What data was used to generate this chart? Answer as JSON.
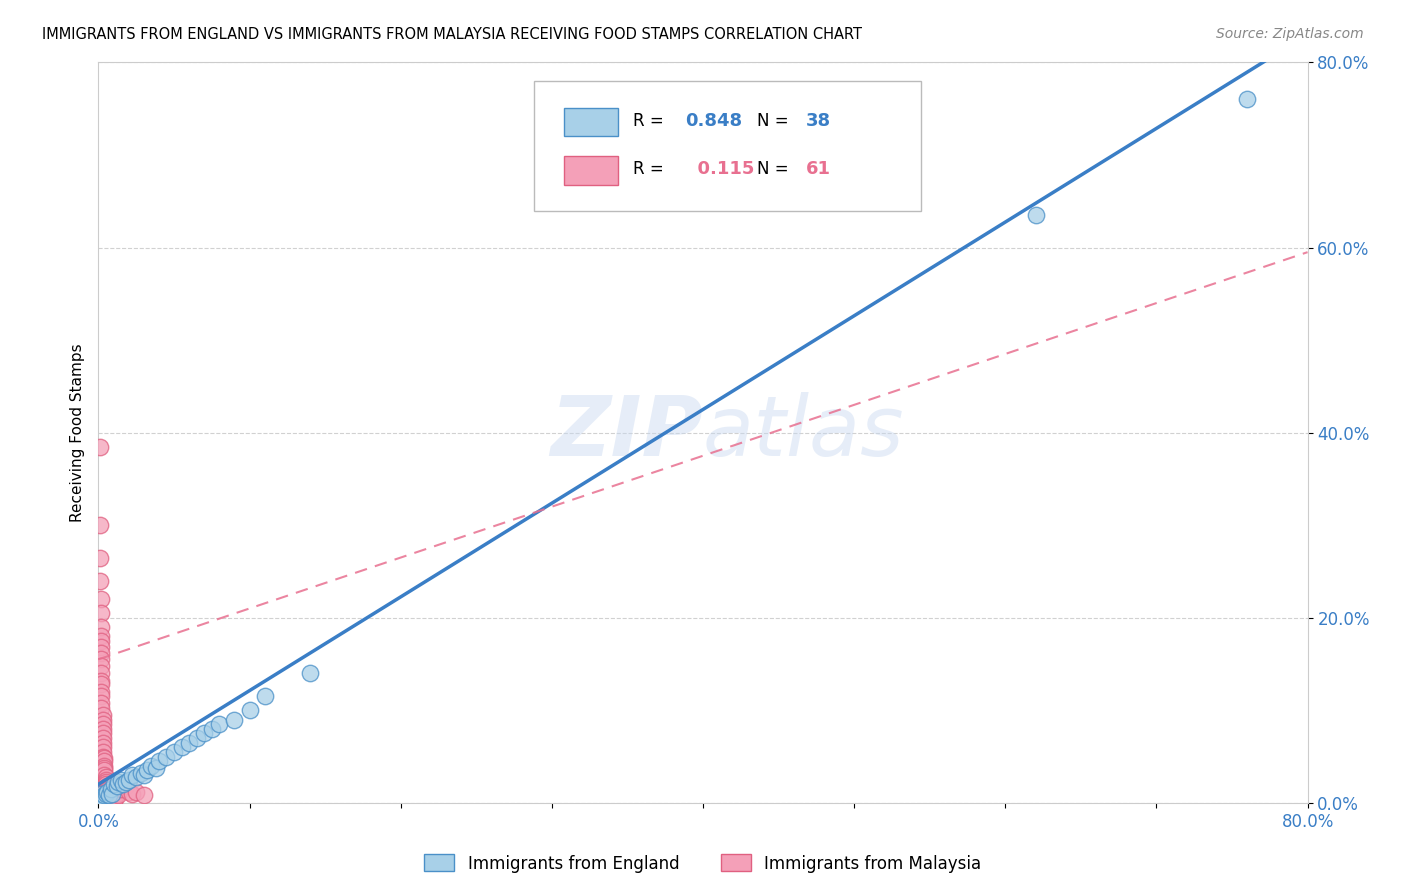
{
  "title": "IMMIGRANTS FROM ENGLAND VS IMMIGRANTS FROM MALAYSIA RECEIVING FOOD STAMPS CORRELATION CHART",
  "source": "Source: ZipAtlas.com",
  "ylabel": "Receiving Food Stamps",
  "xlim": [
    0.0,
    0.8
  ],
  "ylim": [
    0.0,
    0.8
  ],
  "england_R": 0.848,
  "england_N": 38,
  "malaysia_R": 0.115,
  "malaysia_N": 61,
  "england_color": "#A8D0E8",
  "malaysia_color": "#F4A0B8",
  "england_edge_color": "#4A90C8",
  "malaysia_edge_color": "#E06080",
  "england_line_color": "#3A7EC6",
  "malaysia_line_color": "#E87090",
  "england_scatter": [
    [
      0.002,
      0.005
    ],
    [
      0.002,
      0.01
    ],
    [
      0.003,
      0.005
    ],
    [
      0.004,
      0.008
    ],
    [
      0.005,
      0.01
    ],
    [
      0.006,
      0.012
    ],
    [
      0.007,
      0.008
    ],
    [
      0.008,
      0.015
    ],
    [
      0.009,
      0.01
    ],
    [
      0.01,
      0.02
    ],
    [
      0.012,
      0.018
    ],
    [
      0.013,
      0.022
    ],
    [
      0.015,
      0.025
    ],
    [
      0.016,
      0.02
    ],
    [
      0.018,
      0.022
    ],
    [
      0.02,
      0.025
    ],
    [
      0.022,
      0.03
    ],
    [
      0.025,
      0.028
    ],
    [
      0.028,
      0.032
    ],
    [
      0.03,
      0.03
    ],
    [
      0.032,
      0.035
    ],
    [
      0.035,
      0.04
    ],
    [
      0.038,
      0.038
    ],
    [
      0.04,
      0.045
    ],
    [
      0.045,
      0.05
    ],
    [
      0.05,
      0.055
    ],
    [
      0.055,
      0.06
    ],
    [
      0.06,
      0.065
    ],
    [
      0.065,
      0.07
    ],
    [
      0.07,
      0.075
    ],
    [
      0.075,
      0.08
    ],
    [
      0.08,
      0.085
    ],
    [
      0.09,
      0.09
    ],
    [
      0.1,
      0.1
    ],
    [
      0.11,
      0.115
    ],
    [
      0.14,
      0.14
    ],
    [
      0.62,
      0.635
    ],
    [
      0.76,
      0.76
    ]
  ],
  "malaysia_scatter": [
    [
      0.001,
      0.385
    ],
    [
      0.001,
      0.3
    ],
    [
      0.001,
      0.265
    ],
    [
      0.001,
      0.24
    ],
    [
      0.002,
      0.22
    ],
    [
      0.002,
      0.205
    ],
    [
      0.002,
      0.19
    ],
    [
      0.002,
      0.18
    ],
    [
      0.002,
      0.175
    ],
    [
      0.002,
      0.168
    ],
    [
      0.002,
      0.162
    ],
    [
      0.002,
      0.155
    ],
    [
      0.002,
      0.148
    ],
    [
      0.002,
      0.14
    ],
    [
      0.002,
      0.132
    ],
    [
      0.002,
      0.128
    ],
    [
      0.002,
      0.12
    ],
    [
      0.002,
      0.115
    ],
    [
      0.002,
      0.108
    ],
    [
      0.002,
      0.102
    ],
    [
      0.003,
      0.095
    ],
    [
      0.003,
      0.09
    ],
    [
      0.003,
      0.085
    ],
    [
      0.003,
      0.08
    ],
    [
      0.003,
      0.075
    ],
    [
      0.003,
      0.07
    ],
    [
      0.003,
      0.065
    ],
    [
      0.003,
      0.06
    ],
    [
      0.003,
      0.055
    ],
    [
      0.003,
      0.05
    ],
    [
      0.004,
      0.048
    ],
    [
      0.004,
      0.045
    ],
    [
      0.004,
      0.04
    ],
    [
      0.004,
      0.038
    ],
    [
      0.004,
      0.035
    ],
    [
      0.004,
      0.03
    ],
    [
      0.005,
      0.028
    ],
    [
      0.005,
      0.025
    ],
    [
      0.005,
      0.022
    ],
    [
      0.005,
      0.02
    ],
    [
      0.006,
      0.018
    ],
    [
      0.006,
      0.016
    ],
    [
      0.006,
      0.014
    ],
    [
      0.006,
      0.012
    ],
    [
      0.007,
      0.01
    ],
    [
      0.007,
      0.008
    ],
    [
      0.007,
      0.006
    ],
    [
      0.008,
      0.005
    ],
    [
      0.008,
      0.004
    ],
    [
      0.009,
      0.003
    ],
    [
      0.01,
      0.002
    ],
    [
      0.01,
      0.002
    ],
    [
      0.011,
      0.012
    ],
    [
      0.012,
      0.01
    ],
    [
      0.013,
      0.008
    ],
    [
      0.015,
      0.015
    ],
    [
      0.018,
      0.018
    ],
    [
      0.02,
      0.012
    ],
    [
      0.022,
      0.01
    ],
    [
      0.025,
      0.012
    ],
    [
      0.03,
      0.008
    ]
  ],
  "england_line": [
    [
      0.0,
      0.02
    ],
    [
      0.8,
      0.83
    ]
  ],
  "malaysia_line": [
    [
      0.0,
      0.155
    ],
    [
      0.8,
      0.595
    ]
  ],
  "watermark": "ZIPatlas",
  "background_color": "#FFFFFF",
  "grid_color": "#CCCCCC",
  "tick_color": "#3A7EC6"
}
